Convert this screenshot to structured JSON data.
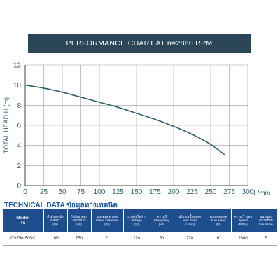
{
  "header": {
    "title": "PERFORMANCE CHART AT  n=2860 RPM"
  },
  "chart_data": {
    "type": "line",
    "title": "PERFORMANCE CHART AT  n=2860 RPM",
    "xlabel": "L/min",
    "ylabel": "TOTAL HEAD H (m)",
    "xlim": [
      0,
      300
    ],
    "ylim": [
      0,
      12
    ],
    "xticks": [
      0,
      25,
      50,
      75,
      100,
      125,
      150,
      175,
      200,
      225,
      250,
      275,
      300
    ],
    "yticks": [
      0,
      2,
      4,
      6,
      8,
      10,
      12
    ],
    "grid": true,
    "line_color": "#2e5f6e",
    "series": [
      {
        "name": "",
        "x": [
          0,
          25,
          50,
          75,
          100,
          125,
          150,
          175,
          200,
          225,
          250,
          270
        ],
        "y": [
          10,
          9.7,
          9.3,
          8.8,
          8.3,
          7.8,
          7.2,
          6.6,
          5.9,
          5.1,
          4.1,
          3.0
        ]
      }
    ]
  },
  "tech": {
    "title_en": "TECHNICAL DATA",
    "title_th": "ข้อมูลทางเทคนิค",
    "columns": [
      {
        "key": "model",
        "top": "Model",
        "bottom": "รุ่น"
      },
      {
        "key": "input",
        "th": "กำลังขาเข้า",
        "en": "INPUT",
        "unit": "(W)"
      },
      {
        "key": "output",
        "th": "กำลังขาออก",
        "en": "OUTPUT",
        "unit": "(W)"
      },
      {
        "key": "outlet",
        "th": "ขนาดท่อทางส่ง",
        "en": "Outlet Diameter",
        "unit": "(IN)"
      },
      {
        "key": "voltage",
        "th": "แรงดันไฟฟ้า",
        "en": "Voltage",
        "unit": "(V)"
      },
      {
        "key": "frequency",
        "th": "ความถี่",
        "en": "Frequency",
        "unit": "(Hz)"
      },
      {
        "key": "maxflow",
        "th": "ปริมาณน้ำสูงสุด",
        "en": "Max.Flow",
        "unit": "(L/min)"
      },
      {
        "key": "maxhead",
        "th": "ระยะส่งสูงสุด",
        "en": "Max.Head",
        "unit": "(M)"
      },
      {
        "key": "speed",
        "th": "ความเร็วรอบ",
        "en": "Speed",
        "unit": "(RPM)"
      },
      {
        "key": "insulation",
        "th": "ฉนวนกันความร้อน",
        "en": "Insulation",
        "unit": ""
      }
    ],
    "rows": [
      {
        "model": "DS750-50DC",
        "input": "1180",
        "output": "750",
        "outlet": "2\"",
        "voltage": "220",
        "frequency": "50",
        "maxflow": "270",
        "maxhead": "10",
        "speed": "2860",
        "insulation": "B"
      }
    ]
  }
}
